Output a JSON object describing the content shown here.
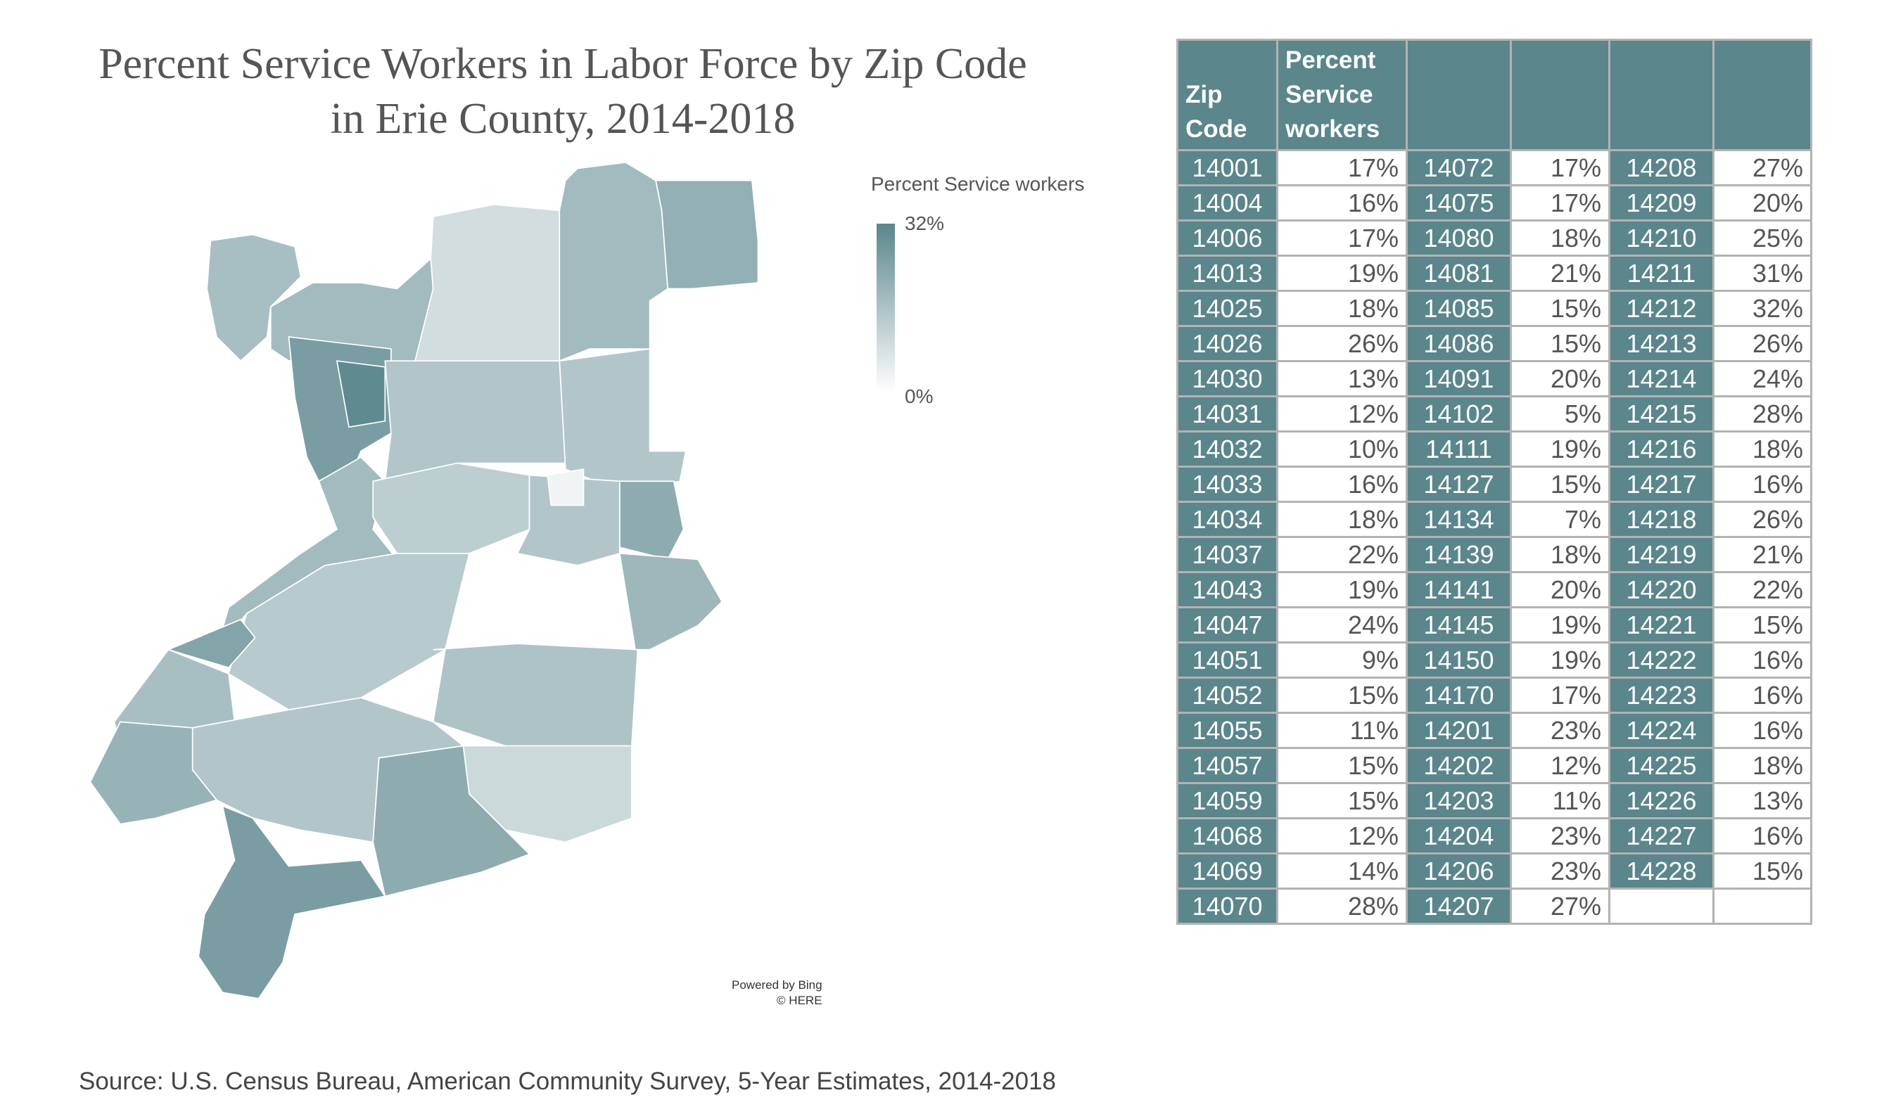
{
  "title_line1": "Percent Service Workers in Labor Force by Zip Code",
  "title_line2": "in Erie County, 2014-2018",
  "legend": {
    "title": "Percent Service workers",
    "max_label": "32%",
    "min_label": "0%",
    "max_color": "#5a868c",
    "min_color": "#ffffff"
  },
  "attribution": {
    "line1": "Powered by Bing",
    "line2": "© HERE"
  },
  "source": "Source: U.S. Census Bureau, American Community Survey, 5-Year Estimates, 2014-2018",
  "chart_data": {
    "type": "table",
    "title": "Percent Service Workers in Labor Force by Zip Code in Erie County, 2014-2018",
    "headers": [
      "Zip Code",
      "Percent Service workers",
      "",
      "",
      "",
      ""
    ],
    "rows": [
      [
        "14001",
        "17%",
        "14072",
        "17%",
        "14208",
        "27%"
      ],
      [
        "14004",
        "16%",
        "14075",
        "17%",
        "14209",
        "20%"
      ],
      [
        "14006",
        "17%",
        "14080",
        "18%",
        "14210",
        "25%"
      ],
      [
        "14013",
        "19%",
        "14081",
        "21%",
        "14211",
        "31%"
      ],
      [
        "14025",
        "18%",
        "14085",
        "15%",
        "14212",
        "32%"
      ],
      [
        "14026",
        "26%",
        "14086",
        "15%",
        "14213",
        "26%"
      ],
      [
        "14030",
        "13%",
        "14091",
        "20%",
        "14214",
        "24%"
      ],
      [
        "14031",
        "12%",
        "14102",
        "5%",
        "14215",
        "28%"
      ],
      [
        "14032",
        "10%",
        "14111",
        "19%",
        "14216",
        "18%"
      ],
      [
        "14033",
        "16%",
        "14127",
        "15%",
        "14217",
        "16%"
      ],
      [
        "14034",
        "18%",
        "14134",
        "7%",
        "14218",
        "26%"
      ],
      [
        "14037",
        "22%",
        "14139",
        "18%",
        "14219",
        "21%"
      ],
      [
        "14043",
        "19%",
        "14141",
        "20%",
        "14220",
        "22%"
      ],
      [
        "14047",
        "24%",
        "14145",
        "19%",
        "14221",
        "15%"
      ],
      [
        "14051",
        "9%",
        "14150",
        "19%",
        "14222",
        "16%"
      ],
      [
        "14052",
        "15%",
        "14170",
        "17%",
        "14223",
        "16%"
      ],
      [
        "14055",
        "11%",
        "14201",
        "23%",
        "14224",
        "16%"
      ],
      [
        "14057",
        "15%",
        "14202",
        "12%",
        "14225",
        "18%"
      ],
      [
        "14059",
        "15%",
        "14203",
        "11%",
        "14226",
        "13%"
      ],
      [
        "14068",
        "12%",
        "14204",
        "23%",
        "14227",
        "16%"
      ],
      [
        "14069",
        "14%",
        "14206",
        "23%",
        "14228",
        "15%"
      ],
      [
        "14070",
        "28%",
        "14207",
        "27%",
        "",
        ""
      ]
    ],
    "color_scale_range": [
      0,
      32
    ]
  }
}
